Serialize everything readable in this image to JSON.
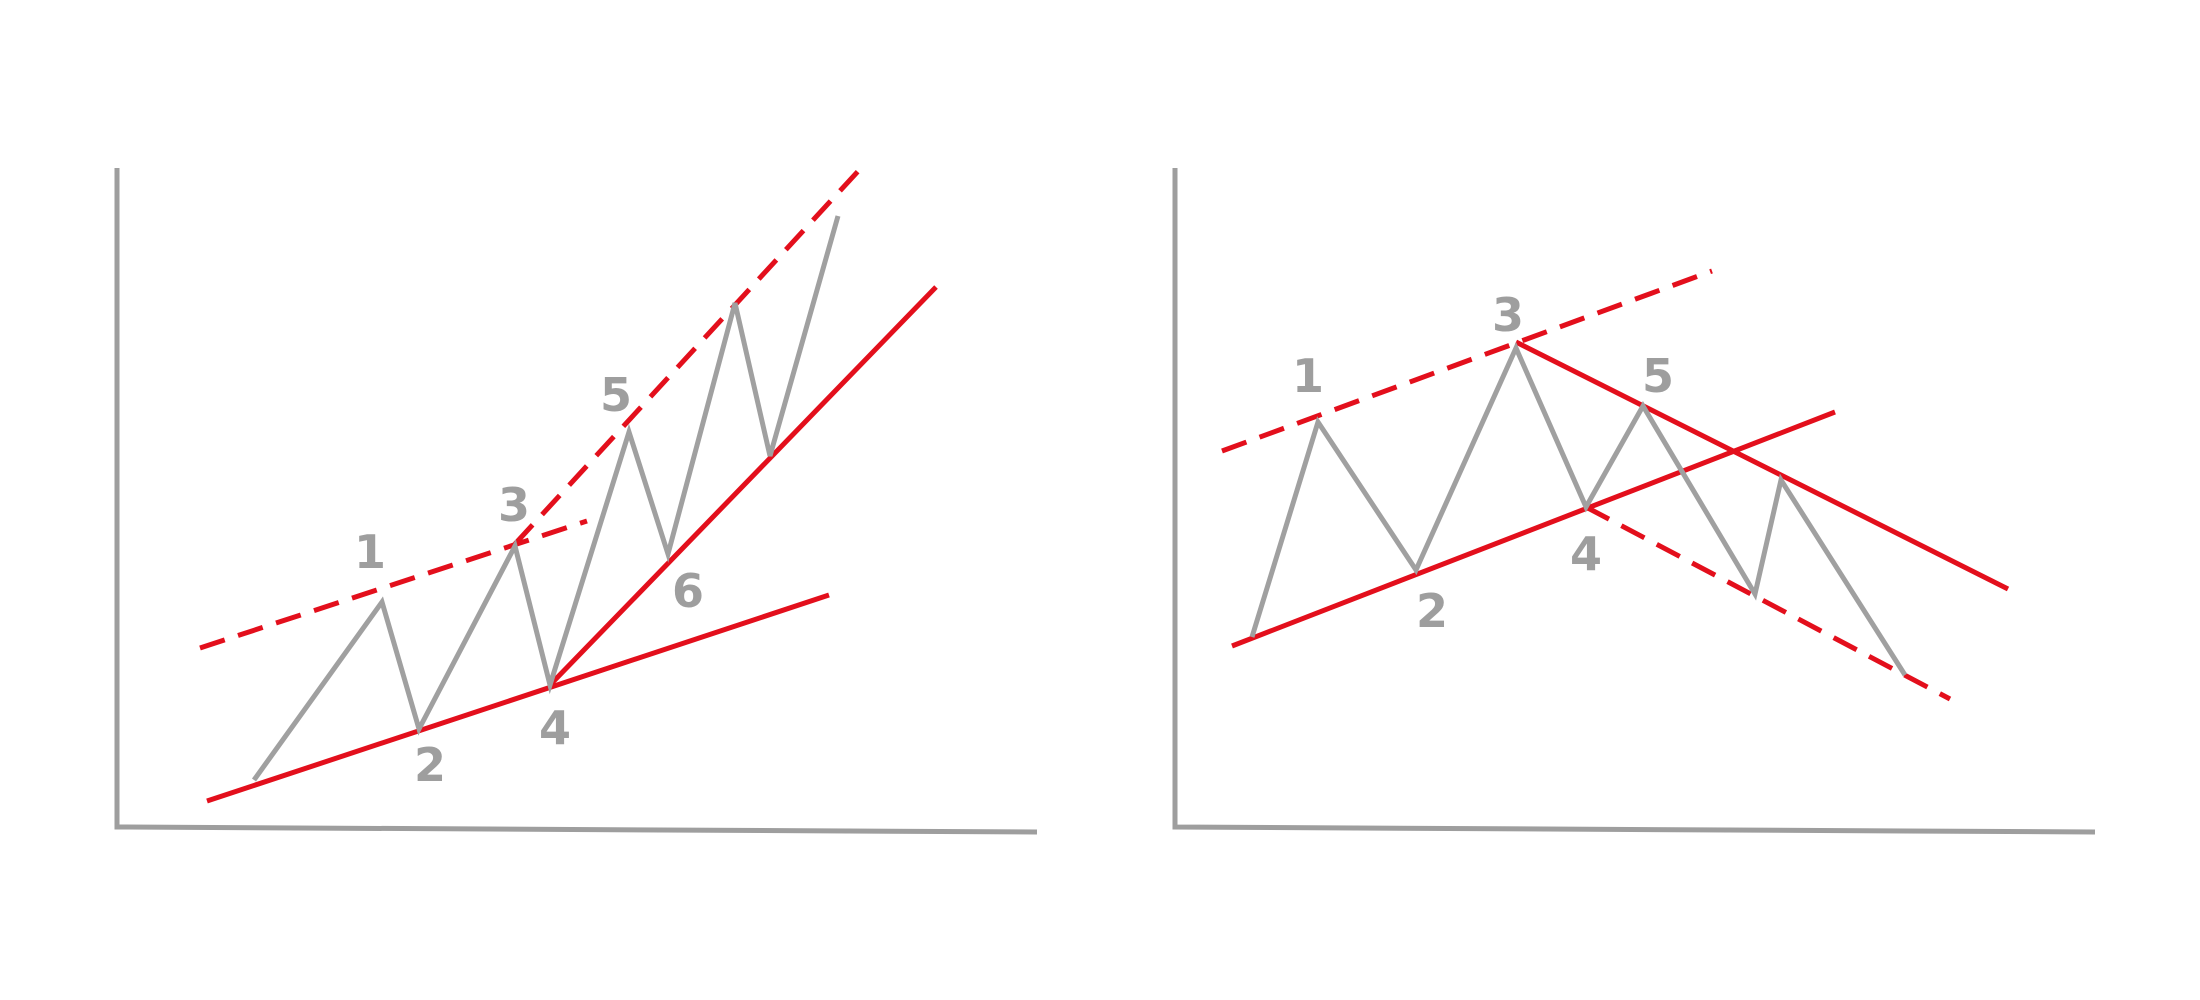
{
  "colors": {
    "axis": "#9e9e9e",
    "price_line": "#a0a0a0",
    "trend_line": "#e30f1c",
    "label": "#9e9e9e"
  },
  "panels": [
    {
      "name": "left-panel",
      "wave_labels": [
        "1",
        "2",
        "3",
        "4",
        "5",
        "6"
      ]
    },
    {
      "name": "right-panel",
      "wave_labels": [
        "1",
        "2",
        "3",
        "4",
        "5"
      ]
    }
  ]
}
